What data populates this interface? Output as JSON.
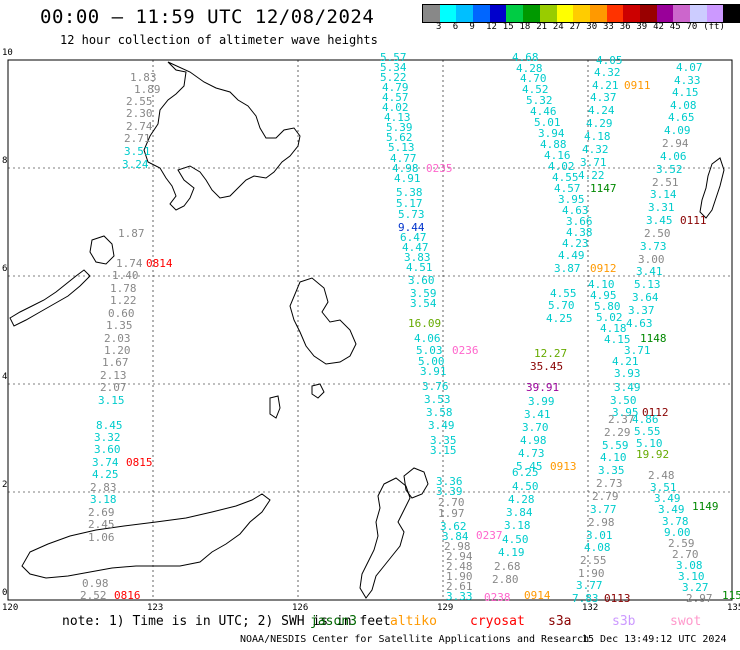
{
  "title": "00:00 – 11:59 UTC 12/08/2024",
  "subtitle": "12 hour collection of altimeter wave heights",
  "scale": {
    "colors": [
      "#888888",
      "#00ffff",
      "#00bfff",
      "#0066ff",
      "#0000cc",
      "#00cc44",
      "#009900",
      "#99cc00",
      "#ffff00",
      "#ffcc00",
      "#ff9900",
      "#ff3300",
      "#cc0000",
      "#990000",
      "#990099",
      "#cc66cc",
      "#ccccff",
      "#cc99ff",
      "#000000"
    ],
    "labels": [
      "3",
      "6",
      "9",
      "12",
      "15",
      "18",
      "21",
      "24",
      "27",
      "30",
      "33",
      "36",
      "39",
      "42",
      "45",
      "70",
      "(ft)"
    ]
  },
  "axes": {
    "x_ticks": [
      "120",
      "123",
      "126",
      "129",
      "132",
      "135"
    ],
    "y_ticks": [
      "0",
      "2",
      "4",
      "6",
      "8",
      "10"
    ]
  },
  "labels": [
    {
      "t": "1.83",
      "x": 130,
      "y": 72,
      "c": "#888"
    },
    {
      "t": "1.89",
      "x": 134,
      "y": 84,
      "c": "#888"
    },
    {
      "t": "2.55",
      "x": 126,
      "y": 96,
      "c": "#888"
    },
    {
      "t": "2.30",
      "x": 126,
      "y": 108,
      "c": "#888"
    },
    {
      "t": "2.74",
      "x": 126,
      "y": 121,
      "c": "#888"
    },
    {
      "t": "2.71",
      "x": 124,
      "y": 133,
      "c": "#888"
    },
    {
      "t": "3.51",
      "x": 124,
      "y": 146,
      "c": "#00cccc"
    },
    {
      "t": "3.24",
      "x": 122,
      "y": 159,
      "c": "#00cccc"
    },
    {
      "t": "1.87",
      "x": 118,
      "y": 228,
      "c": "#888"
    },
    {
      "t": "1.74",
      "x": 116,
      "y": 258,
      "c": "#888"
    },
    {
      "t": "1.40",
      "x": 112,
      "y": 270,
      "c": "#888"
    },
    {
      "t": "1.78",
      "x": 110,
      "y": 283,
      "c": "#888"
    },
    {
      "t": "1.22",
      "x": 110,
      "y": 295,
      "c": "#888"
    },
    {
      "t": "0.60",
      "x": 108,
      "y": 308,
      "c": "#888"
    },
    {
      "t": "1.35",
      "x": 106,
      "y": 320,
      "c": "#888"
    },
    {
      "t": "2.03",
      "x": 104,
      "y": 333,
      "c": "#888"
    },
    {
      "t": "1.20",
      "x": 104,
      "y": 345,
      "c": "#888"
    },
    {
      "t": "1.67",
      "x": 102,
      "y": 357,
      "c": "#888"
    },
    {
      "t": "2.13",
      "x": 100,
      "y": 370,
      "c": "#888"
    },
    {
      "t": "2.07",
      "x": 100,
      "y": 382,
      "c": "#888"
    },
    {
      "t": "3.15",
      "x": 98,
      "y": 395,
      "c": "#00cccc"
    },
    {
      "t": "8.45",
      "x": 96,
      "y": 420,
      "c": "#00cccc"
    },
    {
      "t": "3.32",
      "x": 94,
      "y": 432,
      "c": "#00cccc"
    },
    {
      "t": "3.60",
      "x": 94,
      "y": 444,
      "c": "#00cccc"
    },
    {
      "t": "3.74",
      "x": 92,
      "y": 457,
      "c": "#00cccc"
    },
    {
      "t": "4.25",
      "x": 92,
      "y": 469,
      "c": "#00cccc"
    },
    {
      "t": "2.83",
      "x": 90,
      "y": 482,
      "c": "#888"
    },
    {
      "t": "3.18",
      "x": 90,
      "y": 494,
      "c": "#00cccc"
    },
    {
      "t": "2.69",
      "x": 88,
      "y": 507,
      "c": "#888"
    },
    {
      "t": "2.45",
      "x": 88,
      "y": 519,
      "c": "#888"
    },
    {
      "t": "1.06",
      "x": 88,
      "y": 532,
      "c": "#888"
    },
    {
      "t": "0.98",
      "x": 82,
      "y": 578,
      "c": "#888"
    },
    {
      "t": "2.52",
      "x": 80,
      "y": 590,
      "c": "#888"
    },
    {
      "t": "0814",
      "x": 146,
      "y": 258,
      "c": "#ff0000"
    },
    {
      "t": "0815",
      "x": 126,
      "y": 457,
      "c": "#ff0000"
    },
    {
      "t": "0816",
      "x": 114,
      "y": 590,
      "c": "#ff0000"
    },
    {
      "t": "5.57",
      "x": 380,
      "y": 52,
      "c": "#00cccc"
    },
    {
      "t": "5.34",
      "x": 380,
      "y": 62,
      "c": "#00cccc"
    },
    {
      "t": "5.22",
      "x": 380,
      "y": 72,
      "c": "#00cccc"
    },
    {
      "t": "4.79",
      "x": 382,
      "y": 82,
      "c": "#00cccc"
    },
    {
      "t": "4.57",
      "x": 382,
      "y": 92,
      "c": "#00cccc"
    },
    {
      "t": "4.02",
      "x": 382,
      "y": 102,
      "c": "#00cccc"
    },
    {
      "t": "4.13",
      "x": 384,
      "y": 112,
      "c": "#00cccc"
    },
    {
      "t": "5.39",
      "x": 386,
      "y": 122,
      "c": "#00cccc"
    },
    {
      "t": "5.62",
      "x": 386,
      "y": 132,
      "c": "#00cccc"
    },
    {
      "t": "5.13",
      "x": 388,
      "y": 142,
      "c": "#00cccc"
    },
    {
      "t": "4.77",
      "x": 390,
      "y": 153,
      "c": "#00cccc"
    },
    {
      "t": "4.98",
      "x": 392,
      "y": 163,
      "c": "#00cccc"
    },
    {
      "t": "4.91",
      "x": 394,
      "y": 173,
      "c": "#00cccc"
    },
    {
      "t": "5.38",
      "x": 396,
      "y": 187,
      "c": "#00cccc"
    },
    {
      "t": "5.17",
      "x": 396,
      "y": 198,
      "c": "#00cccc"
    },
    {
      "t": "5.73",
      "x": 398,
      "y": 209,
      "c": "#00cccc"
    },
    {
      "t": "9.44",
      "x": 398,
      "y": 222,
      "c": "#0033cc"
    },
    {
      "t": "6.47",
      "x": 400,
      "y": 232,
      "c": "#00cccc"
    },
    {
      "t": "4.47",
      "x": 402,
      "y": 242,
      "c": "#00cccc"
    },
    {
      "t": "3.83",
      "x": 404,
      "y": 252,
      "c": "#00cccc"
    },
    {
      "t": "4.51",
      "x": 406,
      "y": 262,
      "c": "#00cccc"
    },
    {
      "t": "3.60",
      "x": 408,
      "y": 275,
      "c": "#00cccc"
    },
    {
      "t": "3.59",
      "x": 410,
      "y": 288,
      "c": "#00cccc"
    },
    {
      "t": "3.54",
      "x": 410,
      "y": 298,
      "c": "#00cccc"
    },
    {
      "t": "16.09",
      "x": 408,
      "y": 318,
      "c": "#66aa00"
    },
    {
      "t": "4.06",
      "x": 414,
      "y": 333,
      "c": "#00cccc"
    },
    {
      "t": "5.03",
      "x": 416,
      "y": 345,
      "c": "#00cccc"
    },
    {
      "t": "5.00",
      "x": 418,
      "y": 356,
      "c": "#00cccc"
    },
    {
      "t": "3.91",
      "x": 420,
      "y": 366,
      "c": "#00cccc"
    },
    {
      "t": "3.76",
      "x": 422,
      "y": 381,
      "c": "#00cccc"
    },
    {
      "t": "3.53",
      "x": 424,
      "y": 394,
      "c": "#00cccc"
    },
    {
      "t": "3.58",
      "x": 426,
      "y": 407,
      "c": "#00cccc"
    },
    {
      "t": "3.49",
      "x": 428,
      "y": 420,
      "c": "#00cccc"
    },
    {
      "t": "3.35",
      "x": 430,
      "y": 435,
      "c": "#00cccc"
    },
    {
      "t": "3.15",
      "x": 430,
      "y": 445,
      "c": "#00cccc"
    },
    {
      "t": "0235",
      "x": 426,
      "y": 163,
      "c": "#ff66cc"
    },
    {
      "t": "0236",
      "x": 452,
      "y": 345,
      "c": "#ff66cc"
    },
    {
      "t": "4.68",
      "x": 512,
      "y": 52,
      "c": "#00cccc"
    },
    {
      "t": "4.28",
      "x": 516,
      "y": 63,
      "c": "#00cccc"
    },
    {
      "t": "4.70",
      "x": 520,
      "y": 73,
      "c": "#00cccc"
    },
    {
      "t": "4.52",
      "x": 522,
      "y": 84,
      "c": "#00cccc"
    },
    {
      "t": "5.32",
      "x": 526,
      "y": 95,
      "c": "#00cccc"
    },
    {
      "t": "4.46",
      "x": 530,
      "y": 106,
      "c": "#00cccc"
    },
    {
      "t": "5.01",
      "x": 534,
      "y": 117,
      "c": "#00cccc"
    },
    {
      "t": "3.94",
      "x": 538,
      "y": 128,
      "c": "#00cccc"
    },
    {
      "t": "4.88",
      "x": 540,
      "y": 139,
      "c": "#00cccc"
    },
    {
      "t": "4.16",
      "x": 544,
      "y": 150,
      "c": "#00cccc"
    },
    {
      "t": "4.02",
      "x": 548,
      "y": 161,
      "c": "#00cccc"
    },
    {
      "t": "4.55",
      "x": 552,
      "y": 172,
      "c": "#00cccc"
    },
    {
      "t": "4.57",
      "x": 554,
      "y": 183,
      "c": "#00cccc"
    },
    {
      "t": "3.95",
      "x": 558,
      "y": 194,
      "c": "#00cccc"
    },
    {
      "t": "4.63",
      "x": 562,
      "y": 205,
      "c": "#00cccc"
    },
    {
      "t": "3.66",
      "x": 566,
      "y": 216,
      "c": "#00cccc"
    },
    {
      "t": "4.38",
      "x": 566,
      "y": 227,
      "c": "#00cccc"
    },
    {
      "t": "4.23",
      "x": 562,
      "y": 238,
      "c": "#00cccc"
    },
    {
      "t": "4.49",
      "x": 558,
      "y": 250,
      "c": "#00cccc"
    },
    {
      "t": "3.87",
      "x": 554,
      "y": 263,
      "c": "#00cccc"
    },
    {
      "t": "4.05",
      "x": 596,
      "y": 55,
      "c": "#00cccc"
    },
    {
      "t": "4.32",
      "x": 594,
      "y": 67,
      "c": "#00cccc"
    },
    {
      "t": "4.21",
      "x": 592,
      "y": 80,
      "c": "#00cccc"
    },
    {
      "t": "4.37",
      "x": 590,
      "y": 92,
      "c": "#00cccc"
    },
    {
      "t": "4.24",
      "x": 588,
      "y": 105,
      "c": "#00cccc"
    },
    {
      "t": "4.29",
      "x": 586,
      "y": 118,
      "c": "#00cccc"
    },
    {
      "t": "4.18",
      "x": 584,
      "y": 131,
      "c": "#00cccc"
    },
    {
      "t": "4.32",
      "x": 582,
      "y": 144,
      "c": "#00cccc"
    },
    {
      "t": "3.71",
      "x": 580,
      "y": 157,
      "c": "#00cccc"
    },
    {
      "t": "4.22",
      "x": 578,
      "y": 170,
      "c": "#00cccc"
    },
    {
      "t": "0911",
      "x": 624,
      "y": 80,
      "c": "#ff9900"
    },
    {
      "t": "1147",
      "x": 590,
      "y": 183,
      "c": "#008800"
    },
    {
      "t": "0912",
      "x": 590,
      "y": 263,
      "c": "#ff9900"
    },
    {
      "t": "4.07",
      "x": 676,
      "y": 62,
      "c": "#00cccc"
    },
    {
      "t": "4.33",
      "x": 674,
      "y": 75,
      "c": "#00cccc"
    },
    {
      "t": "4.15",
      "x": 672,
      "y": 87,
      "c": "#00cccc"
    },
    {
      "t": "4.08",
      "x": 670,
      "y": 100,
      "c": "#00cccc"
    },
    {
      "t": "4.65",
      "x": 668,
      "y": 112,
      "c": "#00cccc"
    },
    {
      "t": "4.09",
      "x": 664,
      "y": 125,
      "c": "#00cccc"
    },
    {
      "t": "2.94",
      "x": 662,
      "y": 138,
      "c": "#888"
    },
    {
      "t": "4.06",
      "x": 660,
      "y": 151,
      "c": "#00cccc"
    },
    {
      "t": "3.52",
      "x": 656,
      "y": 164,
      "c": "#00cccc"
    },
    {
      "t": "2.51",
      "x": 652,
      "y": 177,
      "c": "#888"
    },
    {
      "t": "3.14",
      "x": 650,
      "y": 189,
      "c": "#00cccc"
    },
    {
      "t": "3.31",
      "x": 648,
      "y": 202,
      "c": "#00cccc"
    },
    {
      "t": "3.45",
      "x": 646,
      "y": 215,
      "c": "#00cccc"
    },
    {
      "t": "2.50",
      "x": 644,
      "y": 228,
      "c": "#888"
    },
    {
      "t": "3.73",
      "x": 640,
      "y": 241,
      "c": "#00cccc"
    },
    {
      "t": "3.00",
      "x": 638,
      "y": 254,
      "c": "#888"
    },
    {
      "t": "3.41",
      "x": 636,
      "y": 266,
      "c": "#00cccc"
    },
    {
      "t": "5.13",
      "x": 634,
      "y": 279,
      "c": "#00cccc"
    },
    {
      "t": "3.64",
      "x": 632,
      "y": 292,
      "c": "#00cccc"
    },
    {
      "t": "3.37",
      "x": 628,
      "y": 305,
      "c": "#00cccc"
    },
    {
      "t": "4.63",
      "x": 626,
      "y": 318,
      "c": "#00cccc"
    },
    {
      "t": "0111",
      "x": 680,
      "y": 215,
      "c": "#880000"
    },
    {
      "t": "1148",
      "x": 640,
      "y": 333,
      "c": "#008800"
    },
    {
      "t": "4.10",
      "x": 588,
      "y": 279,
      "c": "#00cccc"
    },
    {
      "t": "4.95",
      "x": 590,
      "y": 290,
      "c": "#00cccc"
    },
    {
      "t": "5.80",
      "x": 594,
      "y": 301,
      "c": "#00cccc"
    },
    {
      "t": "5.02",
      "x": 596,
      "y": 312,
      "c": "#00cccc"
    },
    {
      "t": "4.18",
      "x": 600,
      "y": 323,
      "c": "#00cccc"
    },
    {
      "t": "4.15",
      "x": 604,
      "y": 334,
      "c": "#00cccc"
    },
    {
      "t": "3.71",
      "x": 624,
      "y": 345,
      "c": "#00cccc"
    },
    {
      "t": "4.21",
      "x": 612,
      "y": 356,
      "c": "#00cccc"
    },
    {
      "t": "3.93",
      "x": 614,
      "y": 368,
      "c": "#00cccc"
    },
    {
      "t": "3.49",
      "x": 614,
      "y": 382,
      "c": "#00cccc"
    },
    {
      "t": "3.50",
      "x": 610,
      "y": 395,
      "c": "#00cccc"
    },
    {
      "t": "3.95",
      "x": 612,
      "y": 407,
      "c": "#00cccc"
    },
    {
      "t": "2.37",
      "x": 608,
      "y": 414,
      "c": "#888"
    },
    {
      "t": "2.29",
      "x": 604,
      "y": 427,
      "c": "#888"
    },
    {
      "t": "5.59",
      "x": 602,
      "y": 440,
      "c": "#00cccc"
    },
    {
      "t": "4.10",
      "x": 600,
      "y": 452,
      "c": "#00cccc"
    },
    {
      "t": "3.35",
      "x": 598,
      "y": 465,
      "c": "#00cccc"
    },
    {
      "t": "2.73",
      "x": 596,
      "y": 478,
      "c": "#888"
    },
    {
      "t": "2.79",
      "x": 592,
      "y": 491,
      "c": "#888"
    },
    {
      "t": "3.77",
      "x": 590,
      "y": 504,
      "c": "#00cccc"
    },
    {
      "t": "2.98",
      "x": 588,
      "y": 517,
      "c": "#888"
    },
    {
      "t": "3.01",
      "x": 586,
      "y": 530,
      "c": "#00cccc"
    },
    {
      "t": "4.08",
      "x": 584,
      "y": 542,
      "c": "#00cccc"
    },
    {
      "t": "2.55",
      "x": 580,
      "y": 555,
      "c": "#888"
    },
    {
      "t": "1.90",
      "x": 578,
      "y": 568,
      "c": "#888"
    },
    {
      "t": "3.77",
      "x": 576,
      "y": 580,
      "c": "#00cccc"
    },
    {
      "t": "7.83",
      "x": 572,
      "y": 593,
      "c": "#00cccc"
    },
    {
      "t": "0112",
      "x": 642,
      "y": 407,
      "c": "#880000"
    },
    {
      "t": "0113",
      "x": 604,
      "y": 593,
      "c": "#880000"
    },
    {
      "t": "4.86",
      "x": 632,
      "y": 414,
      "c": "#00cccc"
    },
    {
      "t": "5.55",
      "x": 634,
      "y": 426,
      "c": "#00cccc"
    },
    {
      "t": "5.10",
      "x": 636,
      "y": 438,
      "c": "#00cccc"
    },
    {
      "t": "19.92",
      "x": 636,
      "y": 449,
      "c": "#66aa00"
    },
    {
      "t": "2.48",
      "x": 648,
      "y": 470,
      "c": "#888"
    },
    {
      "t": "3.51",
      "x": 650,
      "y": 482,
      "c": "#00cccc"
    },
    {
      "t": "3.49",
      "x": 654,
      "y": 493,
      "c": "#00cccc"
    },
    {
      "t": "3.49",
      "x": 658,
      "y": 504,
      "c": "#00cccc"
    },
    {
      "t": "3.78",
      "x": 662,
      "y": 516,
      "c": "#00cccc"
    },
    {
      "t": "9.00",
      "x": 664,
      "y": 527,
      "c": "#00cccc"
    },
    {
      "t": "2.59",
      "x": 668,
      "y": 538,
      "c": "#888"
    },
    {
      "t": "2.70",
      "x": 672,
      "y": 549,
      "c": "#888"
    },
    {
      "t": "3.08",
      "x": 676,
      "y": 560,
      "c": "#00cccc"
    },
    {
      "t": "3.10",
      "x": 678,
      "y": 571,
      "c": "#00cccc"
    },
    {
      "t": "3.27",
      "x": 682,
      "y": 582,
      "c": "#00cccc"
    },
    {
      "t": "2.97",
      "x": 686,
      "y": 593,
      "c": "#888"
    },
    {
      "t": "1149",
      "x": 692,
      "y": 501,
      "c": "#008800"
    },
    {
      "t": "115",
      "x": 722,
      "y": 590,
      "c": "#008800"
    },
    {
      "t": "4.55",
      "x": 550,
      "y": 288,
      "c": "#00cccc"
    },
    {
      "t": "5.70",
      "x": 548,
      "y": 300,
      "c": "#00cccc"
    },
    {
      "t": "4.25",
      "x": 546,
      "y": 313,
      "c": "#00cccc"
    },
    {
      "t": "12.27",
      "x": 534,
      "y": 348,
      "c": "#66aa00"
    },
    {
      "t": "35.45",
      "x": 530,
      "y": 361,
      "c": "#880000"
    },
    {
      "t": "39.91",
      "x": 526,
      "y": 382,
      "c": "#990099"
    },
    {
      "t": "3.99",
      "x": 528,
      "y": 396,
      "c": "#00cccc"
    },
    {
      "t": "3.41",
      "x": 524,
      "y": 409,
      "c": "#00cccc"
    },
    {
      "t": "3.70",
      "x": 522,
      "y": 422,
      "c": "#00cccc"
    },
    {
      "t": "4.98",
      "x": 520,
      "y": 435,
      "c": "#00cccc"
    },
    {
      "t": "4.73",
      "x": 518,
      "y": 448,
      "c": "#00cccc"
    },
    {
      "t": "5.45",
      "x": 516,
      "y": 461,
      "c": "#00cccc"
    },
    {
      "t": "6.25",
      "x": 512,
      "y": 467,
      "c": "#00cccc"
    },
    {
      "t": "4.50",
      "x": 512,
      "y": 481,
      "c": "#00cccc"
    },
    {
      "t": "4.28",
      "x": 508,
      "y": 494,
      "c": "#00cccc"
    },
    {
      "t": "3.84",
      "x": 506,
      "y": 507,
      "c": "#00cccc"
    },
    {
      "t": "3.18",
      "x": 504,
      "y": 520,
      "c": "#00cccc"
    },
    {
      "t": "4.50",
      "x": 502,
      "y": 534,
      "c": "#00cccc"
    },
    {
      "t": "4.19",
      "x": 498,
      "y": 547,
      "c": "#00cccc"
    },
    {
      "t": "2.68",
      "x": 494,
      "y": 561,
      "c": "#888"
    },
    {
      "t": "2.80",
      "x": 492,
      "y": 574,
      "c": "#888"
    },
    {
      "t": "0913",
      "x": 550,
      "y": 461,
      "c": "#ff9900"
    },
    {
      "t": "0914",
      "x": 524,
      "y": 590,
      "c": "#ff9900"
    },
    {
      "t": "3.36",
      "x": 436,
      "y": 476,
      "c": "#00cccc"
    },
    {
      "t": "3.39",
      "x": 436,
      "y": 486,
      "c": "#00cccc"
    },
    {
      "t": "2.70",
      "x": 438,
      "y": 497,
      "c": "#888"
    },
    {
      "t": "1.97",
      "x": 438,
      "y": 508,
      "c": "#888"
    },
    {
      "t": "3.62",
      "x": 440,
      "y": 521,
      "c": "#00cccc"
    },
    {
      "t": "3.84",
      "x": 442,
      "y": 531,
      "c": "#00cccc"
    },
    {
      "t": "2.98",
      "x": 444,
      "y": 541,
      "c": "#888"
    },
    {
      "t": "2.94",
      "x": 446,
      "y": 551,
      "c": "#888"
    },
    {
      "t": "2.48",
      "x": 446,
      "y": 561,
      "c": "#888"
    },
    {
      "t": "1.90",
      "x": 446,
      "y": 571,
      "c": "#888"
    },
    {
      "t": "2.61",
      "x": 446,
      "y": 581,
      "c": "#888"
    },
    {
      "t": "3.33",
      "x": 446,
      "y": 591,
      "c": "#00cccc"
    },
    {
      "t": "0237",
      "x": 476,
      "y": 530,
      "c": "#ff66cc"
    },
    {
      "t": "0238",
      "x": 484,
      "y": 592,
      "c": "#ff66cc"
    }
  ],
  "note": "note: 1) Time is in UTC; 2) SWH is in feet",
  "satellites": [
    {
      "t": "jason3",
      "c": "#006600"
    },
    {
      "t": "altiko",
      "c": "#ff9900"
    },
    {
      "t": "cryosat",
      "c": "#ff0000"
    },
    {
      "t": "s3a",
      "c": "#880000"
    },
    {
      "t": "s3b",
      "c": "#cc99ff"
    },
    {
      "t": "swot",
      "c": "#ff99cc"
    }
  ],
  "footer": "NOAA/NESDIS Center for Satellite Applications and Research",
  "timestamp": "15 Dec 13:49:12 UTC 2024"
}
